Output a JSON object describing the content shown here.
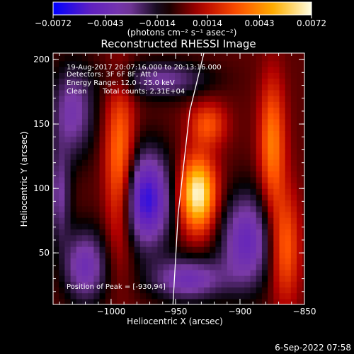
{
  "chart_data": {
    "type": "heatmap",
    "title": "Reconstructed RHESSI Image",
    "xlabel": "Heliocentric X (arcsec)",
    "ylabel": "Heliocentric Y (arcsec)",
    "xlim": [
      -1045,
      -850
    ],
    "ylim": [
      10,
      205
    ],
    "x_ticks": [
      -1000,
      -950,
      -900,
      -850
    ],
    "x_tick_labels": [
      "−1000",
      "−950",
      "−900",
      "−850"
    ],
    "y_ticks": [
      50,
      100,
      150,
      200
    ],
    "y_tick_labels": [
      "50",
      "100",
      "150",
      "200"
    ],
    "colorbar": {
      "min": -0.0072,
      "max": 0.0072,
      "ticks": [
        -0.0072,
        -0.0043,
        -0.0014,
        0.0014,
        0.0043,
        0.0072
      ],
      "tick_labels": [
        "−0.0072",
        "−0.0043",
        "−0.0014",
        "0.0014",
        "0.0043",
        "0.0072"
      ],
      "unit_label": "(photons cm⁻² s⁻¹ asec⁻²)",
      "colors": [
        "#0000ff",
        "#6020c0",
        "#7a3aa6",
        "#000000",
        "#b00000",
        "#ff5000",
        "#ffb000",
        "#ffffe6"
      ]
    },
    "peak": {
      "x": -930,
      "y": 94
    },
    "sources": [
      {
        "x": -973,
        "y": 92,
        "sx": 14,
        "sy": 26,
        "amp": -0.0062
      },
      {
        "x": -933,
        "y": 96,
        "sx": 10,
        "sy": 20,
        "amp": 0.0072
      },
      {
        "x": -993,
        "y": 115,
        "sx": 8,
        "sy": 45,
        "amp": 0.0045
      },
      {
        "x": -895,
        "y": 60,
        "sx": 14,
        "sy": 26,
        "amp": -0.0045
      },
      {
        "x": -875,
        "y": 135,
        "sx": 7,
        "sy": 35,
        "amp": 0.004
      },
      {
        "x": -865,
        "y": 55,
        "sx": 8,
        "sy": 30,
        "amp": 0.0035
      },
      {
        "x": -1030,
        "y": 160,
        "sx": 12,
        "sy": 25,
        "amp": -0.0035
      },
      {
        "x": -1020,
        "y": 40,
        "sx": 12,
        "sy": 20,
        "amp": -0.004
      },
      {
        "x": -940,
        "y": 30,
        "sx": 20,
        "sy": 12,
        "amp": -0.004
      },
      {
        "x": -960,
        "y": 185,
        "sx": 25,
        "sy": 10,
        "amp": -0.003
      },
      {
        "x": -925,
        "y": 150,
        "sx": 10,
        "sy": 12,
        "amp": 0.003
      },
      {
        "x": -1040,
        "y": 95,
        "sx": 6,
        "sy": 25,
        "amp": -0.003
      }
    ],
    "limb_line": [
      {
        "x": -952,
        "y": 10
      },
      {
        "x": -948,
        "y": 80
      },
      {
        "x": -939,
        "y": 160
      },
      {
        "x": -928,
        "y": 205
      }
    ]
  },
  "info": {
    "line1": "19-Aug-2017 20:07:16.000 to 20:13:16.000",
    "line2": "Detectors: 3F 6F 8F, Att 0",
    "line3": "Energy Range: 12.0 - 25.0 keV",
    "line4_method": "Clean",
    "line4_counts": "Total counts: 2.31E+04",
    "peak_text": "Position of Peak = [-930,94]"
  },
  "footer": {
    "timestamp": "6-Sep-2022 07:58"
  }
}
